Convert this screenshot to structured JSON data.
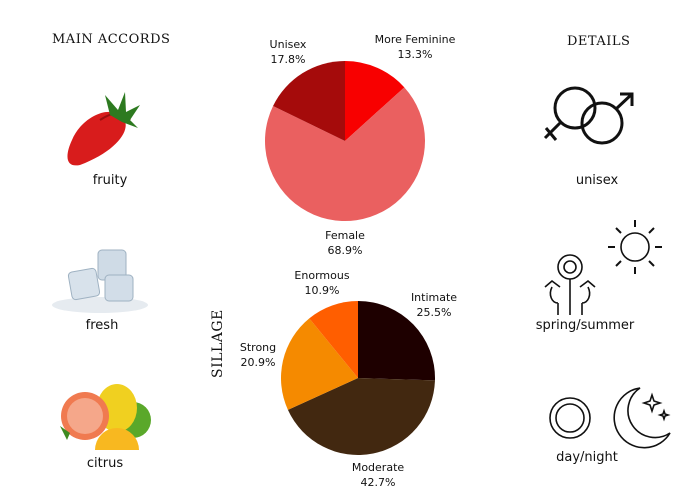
{
  "accords": {
    "title": "MAIN ACCORDS",
    "items": [
      {
        "label": "fruity",
        "icon": "strawberry-icon"
      },
      {
        "label": "fresh",
        "icon": "ice-cubes-icon"
      },
      {
        "label": "citrus",
        "icon": "citrus-fruits-icon"
      }
    ]
  },
  "details": {
    "title": "DETAILS",
    "items": [
      {
        "label": "unisex",
        "icon": "gender-symbols-icon"
      },
      {
        "label": "spring/summer",
        "icon": "sun-flowers-icon"
      },
      {
        "label": "day/night",
        "icon": "sun-moon-icon"
      }
    ]
  },
  "chart_data": [
    {
      "type": "pie",
      "title": "",
      "slices": [
        {
          "label": "More Feminine",
          "value": 13.3,
          "display": "13.3%",
          "color": "#f80000"
        },
        {
          "label": "Female",
          "value": 68.9,
          "display": "68.9%",
          "color": "#ea6060"
        },
        {
          "label": "Unisex",
          "value": 17.8,
          "display": "17.8%",
          "color": "#a50b0b"
        }
      ]
    },
    {
      "type": "pie",
      "title": "SILLAGE",
      "slices": [
        {
          "label": "Intimate",
          "value": 25.5,
          "display": "25.5%",
          "color": "#1e0000"
        },
        {
          "label": "Moderate",
          "value": 42.7,
          "display": "42.7%",
          "color": "#422810"
        },
        {
          "label": "Strong",
          "value": 20.9,
          "display": "20.9%",
          "color": "#f58a00"
        },
        {
          "label": "Enormous",
          "value": 10.9,
          "display": "10.9%",
          "color": "#ff5e00"
        }
      ]
    }
  ]
}
